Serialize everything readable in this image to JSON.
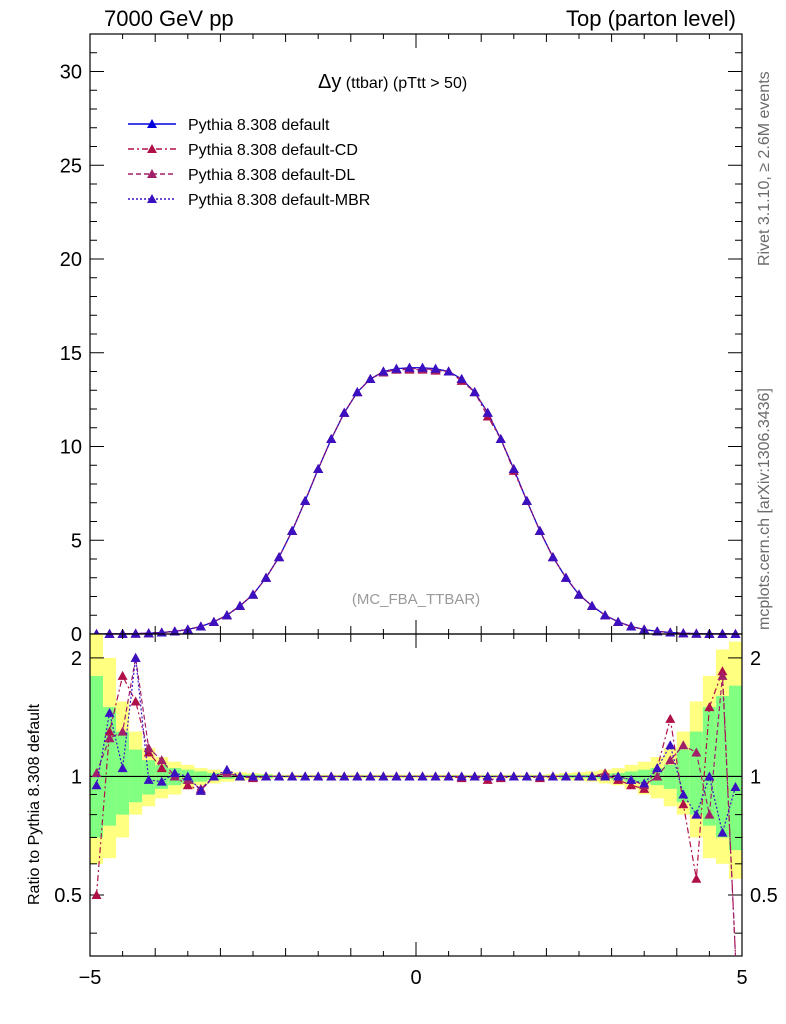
{
  "header": {
    "left": "7000 GeV pp",
    "right": "Top (parton level)"
  },
  "side_labels": {
    "rivet": "Rivet 3.1.10, ≥ 2.6M events",
    "mcplots": "mcplots.cern.ch [arXiv:1306.3436]"
  },
  "plot_title": {
    "main": "Δy",
    "sub": " (ttbar) (pTtt > 50)"
  },
  "watermark": "(MC_FBA_TTBAR)",
  "ratio_ylabel": "Ratio to Pythia 8.308 default",
  "colors": {
    "default": "#0000dd",
    "cd": "#b0104a",
    "dl": "#a0206a",
    "mbr": "#3a10c0",
    "band_yellow": "#ffff80",
    "band_green": "#80ff80"
  },
  "chart_data": [
    {
      "type": "line",
      "x_range": [
        -5,
        5
      ],
      "ylim": [
        0,
        32
      ],
      "y_ticks": [
        0,
        5,
        10,
        15,
        20,
        25,
        30
      ],
      "y_tick_labels": [
        "0",
        "5",
        "10",
        "15",
        "20",
        "25",
        "30"
      ],
      "x": [
        -4.9,
        -4.7,
        -4.5,
        -4.3,
        -4.1,
        -3.9,
        -3.7,
        -3.5,
        -3.3,
        -3.1,
        -2.9,
        -2.7,
        -2.5,
        -2.3,
        -2.1,
        -1.9,
        -1.7,
        -1.5,
        -1.3,
        -1.1,
        -0.9,
        -0.7,
        -0.5,
        -0.3,
        -0.1,
        0.1,
        0.3,
        0.5,
        0.7,
        0.9,
        1.1,
        1.3,
        1.5,
        1.7,
        1.9,
        2.1,
        2.3,
        2.5,
        2.7,
        2.9,
        3.1,
        3.3,
        3.5,
        3.7,
        3.9,
        4.1,
        4.3,
        4.5,
        4.7,
        4.9
      ],
      "series": [
        {
          "name": "Pythia 8.308 default",
          "style": "solid",
          "color_key": "default",
          "values": [
            0.002,
            0.005,
            0.01,
            0.02,
            0.04,
            0.08,
            0.14,
            0.24,
            0.4,
            0.65,
            1.0,
            1.5,
            2.1,
            3.0,
            4.1,
            5.5,
            7.1,
            8.8,
            10.4,
            11.8,
            12.9,
            13.6,
            14.0,
            14.15,
            14.2,
            14.2,
            14.15,
            14.0,
            13.6,
            12.9,
            11.8,
            10.4,
            8.8,
            7.1,
            5.5,
            4.1,
            3.0,
            2.1,
            1.5,
            1.0,
            0.65,
            0.4,
            0.24,
            0.14,
            0.08,
            0.04,
            0.02,
            0.01,
            0.005,
            0.002
          ]
        },
        {
          "name": "Pythia 8.308 default-CD",
          "style": "dashdot",
          "color_key": "cd",
          "values": [
            0.002,
            0.005,
            0.01,
            0.02,
            0.04,
            0.08,
            0.14,
            0.24,
            0.4,
            0.65,
            1.0,
            1.5,
            2.1,
            3.0,
            4.1,
            5.5,
            7.1,
            8.8,
            10.4,
            11.8,
            12.9,
            13.6,
            14.0,
            14.1,
            14.1,
            14.1,
            14.05,
            14.0,
            13.5,
            12.9,
            11.6,
            10.4,
            8.7,
            7.1,
            5.5,
            4.1,
            3.0,
            2.1,
            1.5,
            1.0,
            0.65,
            0.4,
            0.24,
            0.14,
            0.08,
            0.04,
            0.02,
            0.01,
            0.005,
            0.002
          ]
        },
        {
          "name": "Pythia 8.308 default-DL",
          "style": "dashed",
          "color_key": "dl",
          "values": [
            0.002,
            0.005,
            0.01,
            0.02,
            0.04,
            0.08,
            0.14,
            0.24,
            0.4,
            0.65,
            1.0,
            1.5,
            2.1,
            3.0,
            4.1,
            5.5,
            7.1,
            8.8,
            10.4,
            11.8,
            12.9,
            13.6,
            13.95,
            14.1,
            14.15,
            14.15,
            14.1,
            14.0,
            13.6,
            12.9,
            11.8,
            10.4,
            8.8,
            7.1,
            5.5,
            4.1,
            3.0,
            2.1,
            1.5,
            1.0,
            0.65,
            0.4,
            0.24,
            0.14,
            0.08,
            0.04,
            0.02,
            0.01,
            0.005,
            0.002
          ]
        },
        {
          "name": "Pythia 8.308 default-MBR",
          "style": "dotted",
          "color_key": "mbr",
          "values": [
            0.002,
            0.005,
            0.01,
            0.02,
            0.04,
            0.08,
            0.14,
            0.24,
            0.4,
            0.65,
            1.0,
            1.5,
            2.1,
            3.0,
            4.1,
            5.5,
            7.1,
            8.8,
            10.4,
            11.8,
            12.9,
            13.6,
            14.0,
            14.15,
            14.2,
            14.2,
            14.15,
            14.0,
            13.6,
            12.9,
            11.8,
            10.4,
            8.8,
            7.1,
            5.5,
            4.1,
            3.0,
            2.1,
            1.5,
            1.0,
            0.65,
            0.4,
            0.24,
            0.14,
            0.08,
            0.04,
            0.02,
            0.01,
            0.005,
            0.002
          ]
        }
      ]
    },
    {
      "type": "line",
      "x_range": [
        -5,
        5
      ],
      "ylim": [
        0.35,
        2.3
      ],
      "log_y": true,
      "x_ticks": [
        -5,
        0,
        5
      ],
      "x_tick_labels": [
        "−5",
        "0",
        "5"
      ],
      "y_ticks": [
        0.5,
        1,
        2
      ],
      "y_tick_labels": [
        "0.5",
        "1",
        "2"
      ],
      "ylabel": "Ratio to Pythia 8.308 default",
      "x": [
        -4.9,
        -4.7,
        -4.5,
        -4.3,
        -4.1,
        -3.9,
        -3.7,
        -3.5,
        -3.3,
        -3.1,
        -2.9,
        -2.7,
        -2.5,
        -2.3,
        -2.1,
        -1.9,
        -1.7,
        -1.5,
        -1.3,
        -1.1,
        -0.9,
        -0.7,
        -0.5,
        -0.3,
        -0.1,
        0.1,
        0.3,
        0.5,
        0.7,
        0.9,
        1.1,
        1.3,
        1.5,
        1.7,
        1.9,
        2.1,
        2.3,
        2.5,
        2.7,
        2.9,
        3.1,
        3.3,
        3.5,
        3.7,
        3.9,
        4.1,
        4.3,
        4.5,
        4.7,
        4.9
      ],
      "band_yellow": [
        0.6,
        0.62,
        0.7,
        0.8,
        0.84,
        0.88,
        0.9,
        0.93,
        0.95,
        0.96,
        0.97,
        0.975,
        0.98,
        0.985,
        0.99,
        0.99,
        0.99,
        0.99,
        0.99,
        0.99,
        0.99,
        0.99,
        0.99,
        0.99,
        0.99,
        0.99,
        0.99,
        0.99,
        0.99,
        0.99,
        0.99,
        0.99,
        0.99,
        0.99,
        0.99,
        0.985,
        0.98,
        0.975,
        0.97,
        0.96,
        0.95,
        0.93,
        0.9,
        0.88,
        0.84,
        0.8,
        0.7,
        0.62,
        0.6,
        0.55
      ],
      "band_yellow_hi": [
        2.5,
        2.0,
        1.55,
        1.3,
        1.18,
        1.12,
        1.09,
        1.07,
        1.05,
        1.04,
        1.03,
        1.025,
        1.02,
        1.015,
        1.01,
        1.01,
        1.01,
        1.01,
        1.01,
        1.01,
        1.01,
        1.01,
        1.01,
        1.01,
        1.01,
        1.01,
        1.01,
        1.01,
        1.01,
        1.01,
        1.01,
        1.01,
        1.01,
        1.01,
        1.01,
        1.015,
        1.02,
        1.025,
        1.03,
        1.04,
        1.05,
        1.07,
        1.09,
        1.12,
        1.18,
        1.3,
        1.55,
        1.8,
        2.1,
        2.2
      ],
      "band_green": [
        0.7,
        0.75,
        0.8,
        0.86,
        0.9,
        0.93,
        0.95,
        0.96,
        0.97,
        0.98,
        0.985,
        0.99,
        0.99,
        0.99,
        0.995,
        0.995,
        0.995,
        0.995,
        0.995,
        0.995,
        0.995,
        0.995,
        0.995,
        0.995,
        0.995,
        0.995,
        0.995,
        0.995,
        0.995,
        0.995,
        0.995,
        0.995,
        0.995,
        0.995,
        0.995,
        0.995,
        0.99,
        0.99,
        0.99,
        0.985,
        0.98,
        0.97,
        0.96,
        0.95,
        0.93,
        0.86,
        0.8,
        0.75,
        0.7,
        0.65
      ],
      "band_green_hi": [
        1.8,
        1.5,
        1.3,
        1.17,
        1.1,
        1.07,
        1.05,
        1.04,
        1.03,
        1.02,
        1.015,
        1.01,
        1.01,
        1.01,
        1.005,
        1.005,
        1.005,
        1.005,
        1.005,
        1.005,
        1.005,
        1.005,
        1.005,
        1.005,
        1.005,
        1.005,
        1.005,
        1.005,
        1.005,
        1.005,
        1.005,
        1.005,
        1.005,
        1.005,
        1.005,
        1.005,
        1.01,
        1.01,
        1.01,
        1.015,
        1.02,
        1.03,
        1.04,
        1.05,
        1.07,
        1.17,
        1.3,
        1.5,
        1.6,
        1.7
      ],
      "series": [
        {
          "name": "Pythia 8.308 default-CD",
          "style": "dashdot",
          "color_key": "cd",
          "values": [
            0.5,
            1.3,
            1.8,
            1.55,
            1.15,
            1.05,
            1.0,
            0.95,
            0.92,
            1.0,
            1.02,
            1.0,
            0.99,
            1.0,
            1.0,
            1.0,
            1.0,
            1.0,
            1.0,
            1.0,
            1.0,
            1.0,
            1.0,
            1.0,
            1.0,
            1.0,
            1.0,
            1.0,
            0.99,
            1.0,
            0.98,
            0.99,
            1.0,
            1.0,
            0.99,
            1.0,
            1.0,
            1.0,
            1.0,
            1.01,
            0.98,
            0.95,
            0.93,
            1.05,
            1.4,
            0.85,
            0.55,
            1.5,
            1.85,
            0.3
          ]
        },
        {
          "name": "Pythia 8.308 default-DL",
          "style": "dashed",
          "color_key": "dl",
          "values": [
            1.02,
            1.25,
            1.3,
            2.0,
            1.18,
            1.1,
            1.0,
            0.98,
            0.93,
            1.0,
            1.02,
            1.0,
            0.995,
            1.0,
            1.0,
            1.0,
            1.0,
            1.0,
            1.0,
            1.0,
            1.0,
            1.0,
            1.0,
            1.0,
            1.0,
            1.0,
            1.0,
            1.0,
            1.0,
            1.0,
            1.0,
            1.0,
            1.0,
            1.0,
            1.0,
            1.0,
            1.0,
            1.0,
            1.0,
            1.02,
            1.0,
            0.98,
            0.95,
            1.0,
            1.1,
            1.2,
            1.15,
            0.8,
            1.8,
            0.3
          ]
        },
        {
          "name": "Pythia 8.308 default-MBR",
          "style": "dotted",
          "color_key": "mbr",
          "values": [
            0.95,
            1.45,
            1.05,
            2.0,
            0.98,
            0.97,
            1.02,
            1.0,
            0.92,
            1.0,
            1.04,
            1.0,
            1.0,
            1.0,
            1.0,
            1.0,
            1.0,
            1.0,
            1.0,
            1.0,
            1.0,
            1.0,
            1.0,
            1.0,
            1.0,
            1.0,
            1.0,
            1.0,
            1.0,
            1.0,
            1.0,
            1.0,
            1.0,
            1.0,
            1.0,
            1.0,
            1.0,
            1.0,
            1.0,
            1.0,
            1.0,
            0.98,
            0.96,
            1.05,
            1.2,
            0.9,
            0.8,
            1.0,
            0.72,
            0.94
          ]
        }
      ]
    }
  ]
}
